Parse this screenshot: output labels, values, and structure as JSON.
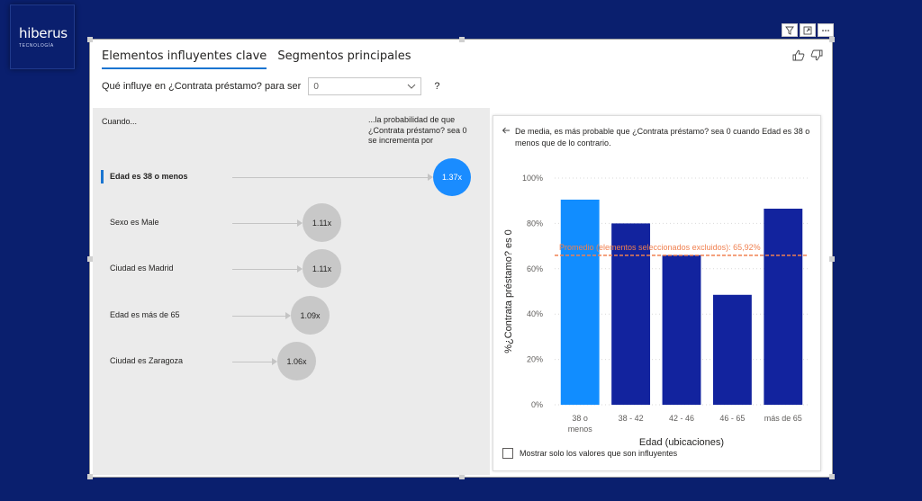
{
  "logo": {
    "brand": "hiberus",
    "sub": "TECNOLOGÍA"
  },
  "header_icons": [
    "filter-icon",
    "focus-mode-icon",
    "more-options-icon"
  ],
  "tabs": [
    {
      "label": "Elementos influyentes clave",
      "active": true
    },
    {
      "label": "Segmentos principales",
      "active": false
    }
  ],
  "question": {
    "prefix": "Qué influye en ¿Contrata préstamo? para ser",
    "select_value": "0",
    "help": "?"
  },
  "influencers": {
    "col_when": "Cuando...",
    "col_prob": "...la probabilidad de que ¿Contrata préstamo? sea 0 se incrementa por",
    "rows": [
      {
        "label": "Edad es 38 o menos",
        "value": "1.37x",
        "selected": true
      },
      {
        "label": "Sexo es Male",
        "value": "1.11x",
        "selected": false
      },
      {
        "label": "Ciudad es Madrid",
        "value": "1.11x",
        "selected": false
      },
      {
        "label": "Edad es más de 65",
        "value": "1.09x",
        "selected": false
      },
      {
        "label": "Ciudad es Zaragoza",
        "value": "1.06x",
        "selected": false
      }
    ]
  },
  "detail": {
    "description": "De media, es más probable que ¿Contrata préstamo? sea 0 cuando Edad es 38 o menos que de lo contrario.",
    "checkbox_label": "Mostrar solo los valores que son influyentes",
    "checkbox_checked": false
  },
  "chart_data": {
    "type": "bar",
    "categories": [
      "38 o menos",
      "38 - 42",
      "42 - 46",
      "46 - 65",
      "más de 65"
    ],
    "values": [
      90.5,
      80,
      66,
      48.5,
      86.5
    ],
    "highlight_index": 0,
    "colors": {
      "highlight": "#118dff",
      "default": "#12239e",
      "reference": "#f08050"
    },
    "ylabel": "%¿Contrata préstamo? es 0",
    "xlabel": "Edad (ubicaciones)",
    "ylim": [
      0,
      100
    ],
    "yticks": [
      "0%",
      "20%",
      "40%",
      "60%",
      "80%",
      "100%"
    ],
    "reference_line": {
      "value": 65.92,
      "label": "Promedio (elementos seleccionados excluidos): 65,92%"
    },
    "grid": true
  }
}
